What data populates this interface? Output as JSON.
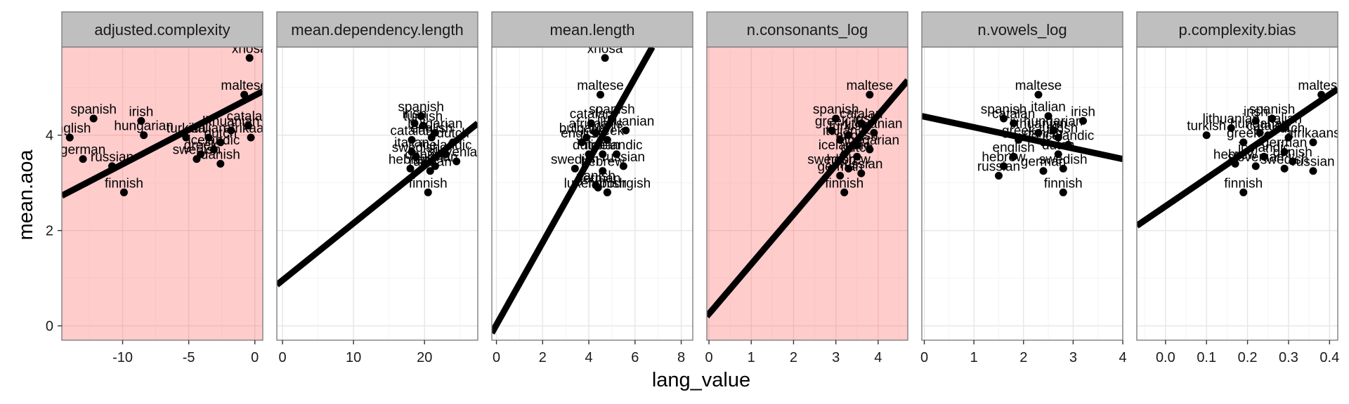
{
  "chart_data": {
    "type": "scatter",
    "xlabel": "lang_value",
    "ylabel": "mean.aoa",
    "ylim": [
      -0.3,
      5.85
    ],
    "y_ticks": [
      0,
      2,
      4
    ],
    "grid": true,
    "highlight_color": "#ffcccc",
    "panels": [
      {
        "title": "adjusted.complexity",
        "highlight": true,
        "xlim": [
          -14.6,
          0.6
        ],
        "x_ticks": [
          -10,
          -5,
          0
        ],
        "x_tick_labels": [
          "-10",
          "-5",
          "0"
        ],
        "fit": {
          "x": [
            -14.6,
            0.6
          ],
          "y": [
            2.73,
            4.92
          ]
        },
        "points": [
          {
            "label": "xhosa",
            "x": -0.4,
            "y": 5.62
          },
          {
            "label": "maltese",
            "x": -0.8,
            "y": 4.85
          },
          {
            "label": "catalan",
            "x": -0.5,
            "y": 4.2
          },
          {
            "label": "spanish",
            "x": -12.2,
            "y": 4.35
          },
          {
            "label": "english",
            "x": -14.0,
            "y": 3.95
          },
          {
            "label": "irish",
            "x": -8.6,
            "y": 4.3
          },
          {
            "label": "hungarian",
            "x": -8.4,
            "y": 4.0
          },
          {
            "label": "lithuanian",
            "x": -1.8,
            "y": 4.1
          },
          {
            "label": "italian",
            "x": -3.5,
            "y": 3.95
          },
          {
            "label": "turkish",
            "x": -5.2,
            "y": 3.95
          },
          {
            "label": "afrikaans",
            "x": -0.3,
            "y": 3.95
          },
          {
            "label": "dutch",
            "x": -2.6,
            "y": 3.85
          },
          {
            "label": "icelandic",
            "x": -3.1,
            "y": 3.7
          },
          {
            "label": "greek",
            "x": -4.1,
            "y": 3.6
          },
          {
            "label": "swedish",
            "x": -4.4,
            "y": 3.5
          },
          {
            "label": "danish",
            "x": -2.6,
            "y": 3.4
          },
          {
            "label": "german",
            "x": -13.0,
            "y": 3.5
          },
          {
            "label": "russian",
            "x": -10.8,
            "y": 3.35
          },
          {
            "label": "finnish",
            "x": -9.9,
            "y": 2.8
          }
        ]
      },
      {
        "title": "mean.dependency.length",
        "highlight": false,
        "xlim": [
          -0.8,
          27.5
        ],
        "x_ticks": [
          0,
          10,
          20
        ],
        "x_tick_labels": [
          "0",
          "10",
          "20"
        ],
        "fit": {
          "x": [
            -0.8,
            27.5
          ],
          "y": [
            0.86,
            4.25
          ]
        },
        "points": [
          {
            "label": "spanish",
            "x": 19.5,
            "y": 4.4
          },
          {
            "label": "irish",
            "x": 18.6,
            "y": 4.25
          },
          {
            "label": "turkish",
            "x": 19.8,
            "y": 4.2
          },
          {
            "label": "bulgarian",
            "x": 21.5,
            "y": 4.05
          },
          {
            "label": "catalan",
            "x": 18.2,
            "y": 3.9
          },
          {
            "label": "english",
            "x": 21.0,
            "y": 3.95
          },
          {
            "label": "dutch",
            "x": 24.0,
            "y": 3.85
          },
          {
            "label": "italian",
            "x": 18.2,
            "y": 3.65
          },
          {
            "label": "swedish",
            "x": 18.8,
            "y": 3.55
          },
          {
            "label": "icelandic",
            "x": 23.0,
            "y": 3.6
          },
          {
            "label": "hebrew",
            "x": 18.0,
            "y": 3.3
          },
          {
            "label": "danish",
            "x": 20.0,
            "y": 3.4
          },
          {
            "label": "german",
            "x": 21.5,
            "y": 3.35
          },
          {
            "label": "slovenian",
            "x": 24.5,
            "y": 3.45
          },
          {
            "label": "russian",
            "x": 20.8,
            "y": 3.25
          },
          {
            "label": "finnish",
            "x": 20.5,
            "y": 2.8
          }
        ]
      },
      {
        "title": "mean.length",
        "highlight": false,
        "xlim": [
          -0.2,
          8.5
        ],
        "x_ticks": [
          0,
          2,
          4,
          6,
          8
        ],
        "x_tick_labels": [
          "0",
          "2",
          "4",
          "6",
          "8"
        ],
        "fit": {
          "x": [
            -0.2,
            6.75
          ],
          "y": [
            -0.15,
            5.85
          ]
        },
        "points": [
          {
            "label": "xhosa",
            "x": 4.7,
            "y": 5.62
          },
          {
            "label": "maltese",
            "x": 4.5,
            "y": 4.85
          },
          {
            "label": "spanish",
            "x": 5.0,
            "y": 4.35
          },
          {
            "label": "catalan",
            "x": 4.1,
            "y": 4.25
          },
          {
            "label": "afrikaans",
            "x": 4.3,
            "y": 4.05
          },
          {
            "label": "lithuanian",
            "x": 5.6,
            "y": 4.1
          },
          {
            "label": "bulgarian",
            "x": 3.9,
            "y": 3.95
          },
          {
            "label": "english",
            "x": 3.7,
            "y": 3.85
          },
          {
            "label": "greek",
            "x": 4.8,
            "y": 3.9
          },
          {
            "label": "dutch",
            "x": 4.0,
            "y": 3.6
          },
          {
            "label": "italian",
            "x": 4.6,
            "y": 3.6
          },
          {
            "label": "icelandic",
            "x": 5.2,
            "y": 3.6
          },
          {
            "label": "swedish",
            "x": 3.4,
            "y": 3.3
          },
          {
            "label": "hebrew",
            "x": 4.6,
            "y": 3.25
          },
          {
            "label": "russian",
            "x": 5.5,
            "y": 3.35
          },
          {
            "label": "danish",
            "x": 4.3,
            "y": 2.95
          },
          {
            "label": "german",
            "x": 4.4,
            "y": 2.9
          },
          {
            "label": "luxembourgish",
            "x": 4.8,
            "y": 2.8
          },
          {
            "label": "finnish",
            "x": 4.8,
            "y": 2.8
          }
        ]
      },
      {
        "title": "n.consonants_log",
        "highlight": true,
        "xlim": [
          -0.05,
          4.7
        ],
        "x_ticks": [
          0,
          1,
          2,
          3,
          4
        ],
        "x_tick_labels": [
          "0",
          "1",
          "2",
          "3",
          "4"
        ],
        "fit": {
          "x": [
            -0.05,
            4.7
          ],
          "y": [
            0.2,
            5.15
          ]
        },
        "points": [
          {
            "label": "maltese",
            "x": 3.8,
            "y": 4.85
          },
          {
            "label": "spanish",
            "x": 3.0,
            "y": 4.35
          },
          {
            "label": "catalan",
            "x": 3.6,
            "y": 4.25
          },
          {
            "label": "greek",
            "x": 2.9,
            "y": 4.1
          },
          {
            "label": "irish",
            "x": 3.7,
            "y": 4.15
          },
          {
            "label": "turkish",
            "x": 3.3,
            "y": 4.0
          },
          {
            "label": "lithuanian",
            "x": 3.9,
            "y": 4.05
          },
          {
            "label": "italian",
            "x": 3.1,
            "y": 3.9
          },
          {
            "label": "english",
            "x": 3.5,
            "y": 3.8
          },
          {
            "label": "hungarian",
            "x": 3.8,
            "y": 3.7
          },
          {
            "label": "icelandic",
            "x": 3.2,
            "y": 3.6
          },
          {
            "label": "dutch",
            "x": 3.5,
            "y": 3.55
          },
          {
            "label": "hebrew",
            "x": 3.3,
            "y": 3.3
          },
          {
            "label": "swedish",
            "x": 2.9,
            "y": 3.3
          },
          {
            "label": "german",
            "x": 3.1,
            "y": 3.15
          },
          {
            "label": "russian",
            "x": 3.6,
            "y": 3.2
          },
          {
            "label": "finnish",
            "x": 3.2,
            "y": 2.8
          }
        ]
      },
      {
        "title": "n.vowels_log",
        "highlight": false,
        "xlim": [
          -0.05,
          4.0
        ],
        "x_ticks": [
          0,
          1,
          2,
          3,
          4
        ],
        "x_tick_labels": [
          "0",
          "1",
          "2",
          "3",
          "4"
        ],
        "fit": {
          "x": [
            -0.05,
            4.0
          ],
          "y": [
            4.4,
            3.5
          ]
        },
        "points": [
          {
            "label": "maltese",
            "x": 2.3,
            "y": 4.85
          },
          {
            "label": "spanish",
            "x": 1.6,
            "y": 4.35
          },
          {
            "label": "italian",
            "x": 2.5,
            "y": 4.4
          },
          {
            "label": "catalan",
            "x": 1.8,
            "y": 4.25
          },
          {
            "label": "irish",
            "x": 3.2,
            "y": 4.3
          },
          {
            "label": "lithuanian",
            "x": 2.3,
            "y": 4.05
          },
          {
            "label": "hungarian",
            "x": 2.6,
            "y": 4.1
          },
          {
            "label": "greek",
            "x": 1.9,
            "y": 3.9
          },
          {
            "label": "turkish",
            "x": 2.7,
            "y": 3.95
          },
          {
            "label": "danish",
            "x": 2.4,
            "y": 3.85
          },
          {
            "label": "icelandic",
            "x": 2.9,
            "y": 3.8
          },
          {
            "label": "english",
            "x": 1.8,
            "y": 3.55
          },
          {
            "label": "dutch",
            "x": 2.7,
            "y": 3.6
          },
          {
            "label": "hebrew",
            "x": 1.6,
            "y": 3.35
          },
          {
            "label": "german",
            "x": 2.4,
            "y": 3.25
          },
          {
            "label": "swedish",
            "x": 2.8,
            "y": 3.3
          },
          {
            "label": "russian",
            "x": 1.5,
            "y": 3.15
          },
          {
            "label": "finnish",
            "x": 2.8,
            "y": 2.8
          }
        ]
      },
      {
        "title": "p.complexity.bias",
        "highlight": false,
        "xlim": [
          -0.07,
          0.42
        ],
        "x_ticks": [
          0.0,
          0.1,
          0.2,
          0.3,
          0.4
        ],
        "x_tick_labels": [
          "0.0",
          "0.1",
          "0.2",
          "0.3",
          "0.4"
        ],
        "fit": {
          "x": [
            -0.07,
            0.42
          ],
          "y": [
            2.1,
            4.97
          ]
        },
        "points": [
          {
            "label": "maltese",
            "x": 0.38,
            "y": 4.85
          },
          {
            "label": "spanish",
            "x": 0.26,
            "y": 4.35
          },
          {
            "label": "irish",
            "x": 0.22,
            "y": 4.3
          },
          {
            "label": "lithuanian",
            "x": 0.16,
            "y": 4.15
          },
          {
            "label": "italian",
            "x": 0.29,
            "y": 4.15
          },
          {
            "label": "turkish",
            "x": 0.1,
            "y": 4.0
          },
          {
            "label": "hungarian",
            "x": 0.23,
            "y": 4.05
          },
          {
            "label": "dutch",
            "x": 0.3,
            "y": 3.95
          },
          {
            "label": "catalan",
            "x": 0.25,
            "y": 4.0
          },
          {
            "label": "greek",
            "x": 0.19,
            "y": 3.85
          },
          {
            "label": "afrikaans",
            "x": 0.36,
            "y": 3.85
          },
          {
            "label": "german",
            "x": 0.29,
            "y": 3.65
          },
          {
            "label": "icelandic",
            "x": 0.24,
            "y": 3.55
          },
          {
            "label": "hebrew",
            "x": 0.17,
            "y": 3.4
          },
          {
            "label": "danish",
            "x": 0.31,
            "y": 3.45
          },
          {
            "label": "slovenian",
            "x": 0.22,
            "y": 3.35
          },
          {
            "label": "swedish",
            "x": 0.29,
            "y": 3.3
          },
          {
            "label": "russian",
            "x": 0.36,
            "y": 3.25
          },
          {
            "label": "finnish",
            "x": 0.19,
            "y": 2.8
          }
        ]
      }
    ]
  }
}
